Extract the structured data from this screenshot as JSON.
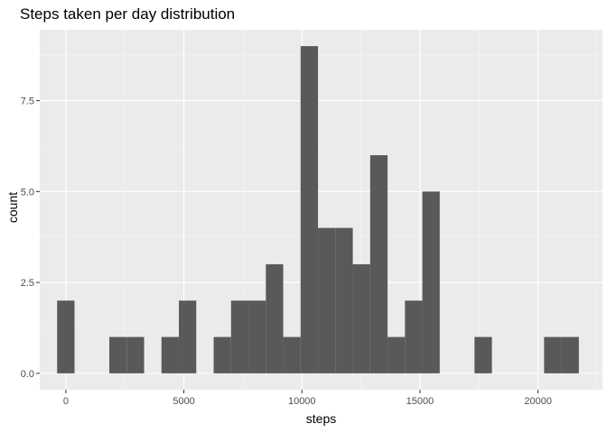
{
  "chart_data": {
    "type": "bar",
    "title": "Steps taken per day distribution",
    "xlabel": "steps",
    "ylabel": "count",
    "bin_width": 736.6,
    "bins": [
      {
        "center": 0,
        "count": 2
      },
      {
        "center": 736.6,
        "count": 0
      },
      {
        "center": 1473.2,
        "count": 0
      },
      {
        "center": 2209.8,
        "count": 1
      },
      {
        "center": 2946.4,
        "count": 1
      },
      {
        "center": 3683.0,
        "count": 0
      },
      {
        "center": 4419.6,
        "count": 1
      },
      {
        "center": 5156.2,
        "count": 2
      },
      {
        "center": 5892.8,
        "count": 0
      },
      {
        "center": 6629.4,
        "count": 1
      },
      {
        "center": 7366.0,
        "count": 2
      },
      {
        "center": 8102.6,
        "count": 2
      },
      {
        "center": 8839.2,
        "count": 3
      },
      {
        "center": 9575.8,
        "count": 1
      },
      {
        "center": 10312.4,
        "count": 9
      },
      {
        "center": 11049.0,
        "count": 4
      },
      {
        "center": 11785.6,
        "count": 4
      },
      {
        "center": 12522.2,
        "count": 3
      },
      {
        "center": 13258.8,
        "count": 6
      },
      {
        "center": 13995.4,
        "count": 1
      },
      {
        "center": 14732.0,
        "count": 2
      },
      {
        "center": 15468.6,
        "count": 5
      },
      {
        "center": 16205.2,
        "count": 0
      },
      {
        "center": 16941.8,
        "count": 0
      },
      {
        "center": 17678.4,
        "count": 1
      },
      {
        "center": 18415.0,
        "count": 0
      },
      {
        "center": 19151.6,
        "count": 0
      },
      {
        "center": 19888.2,
        "count": 0
      },
      {
        "center": 20624.8,
        "count": 1
      },
      {
        "center": 21361.4,
        "count": 1
      }
    ],
    "xlim": [
      -1105,
      22730
    ],
    "ylim": [
      -0.45,
      9.45
    ],
    "x_ticks": [
      0,
      5000,
      10000,
      15000,
      20000
    ],
    "x_tick_labels": [
      "0",
      "5000",
      "10000",
      "15000",
      "20000"
    ],
    "y_ticks": [
      0,
      2.5,
      5,
      7.5
    ],
    "y_tick_labels": [
      "0.0",
      "2.5",
      "5.0",
      "7.5"
    ],
    "grid": true,
    "colors": {
      "bar": "#595959",
      "panel": "#ebebeb",
      "grid_major": "#ffffff",
      "tick_text": "#4d4d4d"
    }
  }
}
